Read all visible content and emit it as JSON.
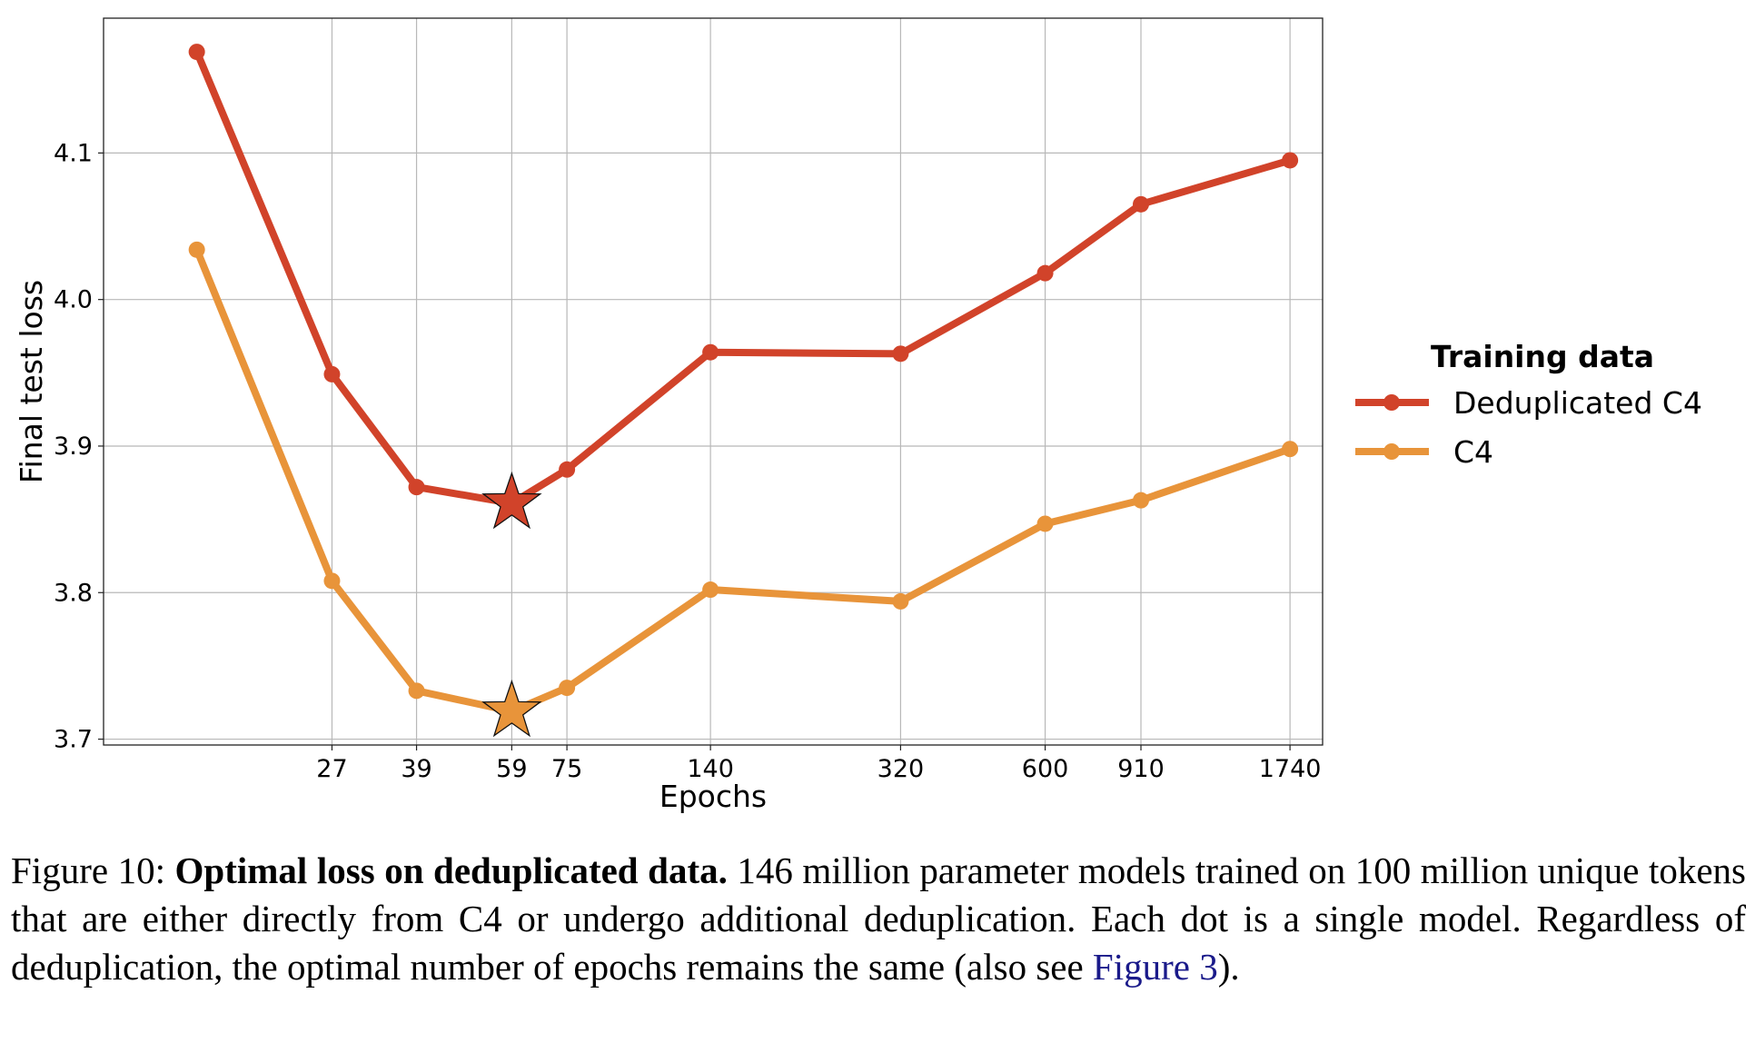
{
  "chart_data": {
    "type": "line",
    "title": "",
    "xlabel": "Epochs",
    "ylabel": "Final test loss",
    "xscale": "log",
    "xlim": [
      10,
      2005
    ],
    "ylim": [
      3.696,
      4.192
    ],
    "x": [
      15,
      27,
      39,
      59,
      75,
      140,
      320,
      600,
      910,
      1740
    ],
    "xticks": [
      27,
      39,
      59,
      75,
      140,
      320,
      600,
      910,
      1740
    ],
    "xtick_labels": [
      "27",
      "39",
      "59",
      "75",
      "140",
      "320",
      "600",
      "910",
      "1740"
    ],
    "yticks": [
      3.7,
      3.8,
      3.9,
      4.0,
      4.1
    ],
    "ytick_labels": [
      "3.7",
      "3.8",
      "3.9",
      "4.0",
      "4.1"
    ],
    "grid": true,
    "legend": {
      "title": "Training data",
      "placement": "right-outside"
    },
    "series": [
      {
        "name": "Deduplicated C4",
        "color": "#d1432a",
        "values": [
          4.169,
          3.949,
          3.872,
          3.861,
          3.884,
          3.964,
          3.963,
          4.018,
          4.065,
          4.095
        ],
        "optimum_index": 3
      },
      {
        "name": "C4",
        "color": "#e8943a",
        "values": [
          4.034,
          3.808,
          3.733,
          3.719,
          3.735,
          3.802,
          3.794,
          3.847,
          3.863,
          3.898
        ],
        "optimum_index": 3
      }
    ]
  },
  "caption": {
    "label": "Figure 10: ",
    "bold_title": "Optimal loss on deduplicated data.",
    "body": " 146 million parameter models trained on 100 million unique tokens that are either directly from C4 or undergo additional deduplication. Each dot is a single model. Regardless of deduplication, the optimal number of epochs remains the same (also see ",
    "link": "Figure 3",
    "end": ")."
  }
}
